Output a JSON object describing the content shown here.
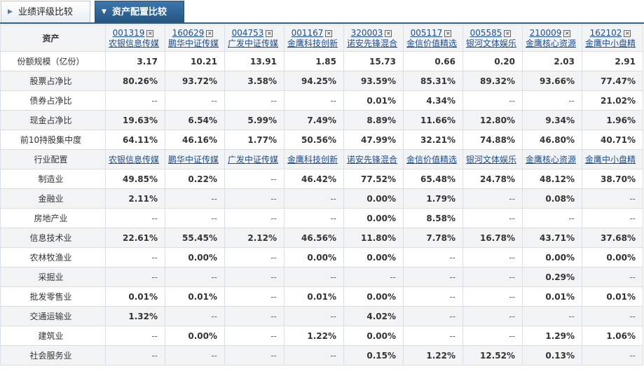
{
  "tabs": [
    {
      "label": "业绩评级比较",
      "active": false
    },
    {
      "label": "资产配置比较",
      "active": true
    }
  ],
  "funds": [
    {
      "code": "001319",
      "name": "农银信息传媒"
    },
    {
      "code": "160629",
      "name": "鹏华中证传媒"
    },
    {
      "code": "004753",
      "name": "广发中证传媒"
    },
    {
      "code": "001167",
      "name": "金鹰科技创新"
    },
    {
      "code": "320003",
      "name": "诺安先锋混合"
    },
    {
      "code": "005117",
      "name": "金信价值精选"
    },
    {
      "code": "005585",
      "name": "银河文体娱乐"
    },
    {
      "code": "210009",
      "name": "金鹰核心资源"
    },
    {
      "code": "162102",
      "name": "金鹰中小盘精"
    }
  ],
  "close_glyph": "×",
  "asset_header": "资产",
  "asset_rows": [
    {
      "label": "份额规模（亿份）",
      "values": [
        "3.17",
        "10.21",
        "13.91",
        "1.85",
        "15.73",
        "0.66",
        "0.20",
        "2.03",
        "2.91"
      ]
    },
    {
      "label": "股票占净比",
      "values": [
        "80.26%",
        "93.72%",
        "3.58%",
        "94.25%",
        "93.59%",
        "85.31%",
        "89.32%",
        "93.66%",
        "77.47%"
      ]
    },
    {
      "label": "债券占净比",
      "values": [
        "--",
        "--",
        "--",
        "--",
        "0.01%",
        "4.34%",
        "--",
        "--",
        "21.02%"
      ]
    },
    {
      "label": "现金占净比",
      "values": [
        "19.63%",
        "6.54%",
        "5.99%",
        "7.49%",
        "8.89%",
        "11.66%",
        "12.80%",
        "9.34%",
        "1.96%"
      ]
    },
    {
      "label": "前10持股集中度",
      "values": [
        "64.11%",
        "46.16%",
        "1.77%",
        "50.56%",
        "47.99%",
        "32.21%",
        "74.88%",
        "46.80%",
        "40.71%"
      ]
    }
  ],
  "industry_header": "行业配置",
  "industry_rows": [
    {
      "label": "制造业",
      "values": [
        "49.85%",
        "0.22%",
        "--",
        "46.42%",
        "77.52%",
        "65.48%",
        "24.78%",
        "48.12%",
        "38.70%"
      ]
    },
    {
      "label": "金融业",
      "values": [
        "2.11%",
        "--",
        "--",
        "--",
        "0.00%",
        "1.79%",
        "--",
        "0.08%",
        "--"
      ]
    },
    {
      "label": "房地产业",
      "values": [
        "--",
        "--",
        "--",
        "--",
        "0.00%",
        "8.58%",
        "--",
        "--",
        "--"
      ]
    },
    {
      "label": "信息技术业",
      "values": [
        "22.61%",
        "55.45%",
        "2.12%",
        "46.56%",
        "11.80%",
        "7.78%",
        "16.78%",
        "43.71%",
        "37.68%"
      ]
    },
    {
      "label": "农林牧渔业",
      "values": [
        "--",
        "0.00%",
        "--",
        "0.00%",
        "0.00%",
        "--",
        "--",
        "0.00%",
        "0.00%"
      ]
    },
    {
      "label": "采掘业",
      "values": [
        "--",
        "--",
        "--",
        "--",
        "--",
        "--",
        "--",
        "0.29%",
        "--"
      ]
    },
    {
      "label": "批发零售业",
      "values": [
        "0.01%",
        "0.01%",
        "--",
        "0.01%",
        "0.00%",
        "--",
        "--",
        "0.01%",
        "0.01%"
      ]
    },
    {
      "label": "交通运输业",
      "values": [
        "1.32%",
        "--",
        "--",
        "--",
        "4.02%",
        "--",
        "--",
        "--",
        "--"
      ]
    },
    {
      "label": "建筑业",
      "values": [
        "--",
        "0.00%",
        "--",
        "1.22%",
        "0.00%",
        "--",
        "--",
        "1.29%",
        "1.06%"
      ]
    },
    {
      "label": "社会服务业",
      "values": [
        "--",
        "--",
        "--",
        "--",
        "0.15%",
        "1.22%",
        "12.52%",
        "0.13%",
        "--"
      ]
    }
  ]
}
